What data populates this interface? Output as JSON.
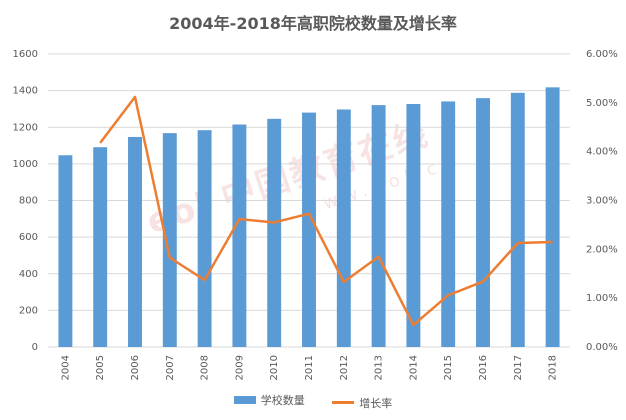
{
  "chart_data": {
    "type": "bar",
    "title": "2004年-2018年高职院校数量及增长率",
    "categories": [
      "2004",
      "2005",
      "2006",
      "2007",
      "2008",
      "2009",
      "2010",
      "2011",
      "2012",
      "2013",
      "2014",
      "2015",
      "2016",
      "2017",
      "2018"
    ],
    "series": [
      {
        "name": "学校数量",
        "type": "bar",
        "axis": "left",
        "color": "#5B9BD5",
        "values": [
          1047,
          1091,
          1147,
          1168,
          1184,
          1215,
          1246,
          1280,
          1297,
          1321,
          1327,
          1341,
          1359,
          1388,
          1418
        ]
      },
      {
        "name": "增长率",
        "type": "line",
        "axis": "right",
        "color": "#ED7D31",
        "values": [
          null,
          0.0418,
          0.0512,
          0.0183,
          0.0137,
          0.0262,
          0.0255,
          0.0273,
          0.0133,
          0.0185,
          0.0045,
          0.0106,
          0.0134,
          0.0213,
          0.0215
        ]
      }
    ],
    "left_axis": {
      "ylim": [
        0,
        1600
      ],
      "ticks": [
        "0",
        "200",
        "400",
        "600",
        "800",
        "1000",
        "1200",
        "1400",
        "1600"
      ]
    },
    "right_axis": {
      "ylim": [
        0,
        0.06
      ],
      "ticks": [
        "0.00%",
        "1.00%",
        "2.00%",
        "3.00%",
        "4.00%",
        "5.00%",
        "6.00%"
      ]
    },
    "grid": true,
    "legend_position": "bottom",
    "watermark": "中国教育在线 www.eol.cn"
  }
}
